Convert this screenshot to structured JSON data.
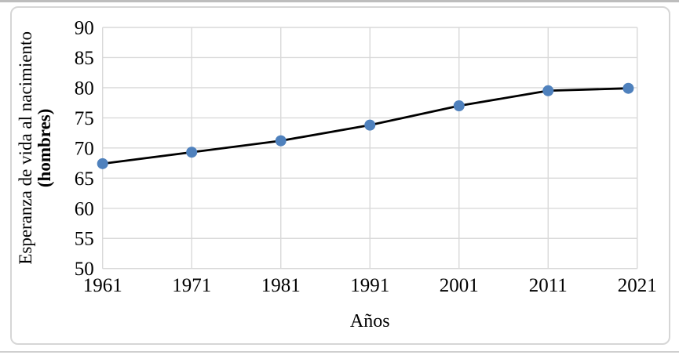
{
  "figure": {
    "background": "#ffffff",
    "border_color": "#d6d6d6",
    "edge_line_color": "#bdbdbd"
  },
  "chart_data": {
    "type": "line",
    "title": "",
    "x": [
      1961,
      1971,
      1981,
      1991,
      2001,
      2011,
      2020
    ],
    "y": [
      67.4,
      69.3,
      71.2,
      73.8,
      77.0,
      79.5,
      79.9
    ],
    "xlabel": "Años",
    "ylabel": "Esperanza de vida al nacimiento (hombres)",
    "ylabel_lines": [
      "Esperanza de vida al nacimiento",
      "(hombres)"
    ],
    "x_tick_labels": [
      "1961",
      "1971",
      "1981",
      "1991",
      "2001",
      "2011",
      "2021"
    ],
    "x_tick_values": [
      1961,
      1971,
      1981,
      1991,
      2001,
      2011,
      2021
    ],
    "y_tick_labels": [
      "50",
      "55",
      "60",
      "65",
      "70",
      "75",
      "80",
      "85",
      "90"
    ],
    "y_tick_values": [
      50,
      55,
      60,
      65,
      70,
      75,
      80,
      85,
      90
    ],
    "xlim": [
      1961,
      2021
    ],
    "ylim": [
      50,
      90
    ],
    "grid": true,
    "legend_position": "none",
    "line_color": "#000000",
    "marker_color": "#4f81bd",
    "gridline_color": "#d9d9d9",
    "text_color": "#000000"
  }
}
